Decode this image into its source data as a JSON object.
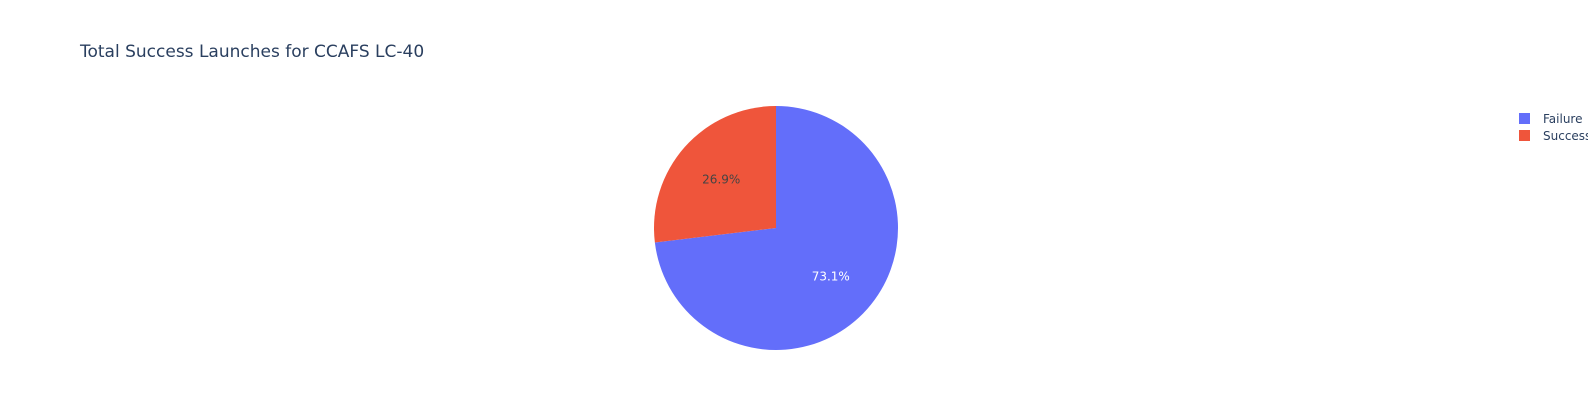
{
  "chart_data": {
    "type": "pie",
    "title": "Total Success Launches for CCAFS LC-40",
    "categories": [
      "Failure",
      "Success"
    ],
    "values": [
      73.1,
      26.9
    ],
    "labels": [
      "73.1%",
      "26.9%"
    ],
    "colors": [
      "#636efa",
      "#ef553b"
    ],
    "label_colors": [
      "#ffffff",
      "#444444"
    ],
    "legend": {
      "position": "top-right",
      "entries": [
        "Failure",
        "Success"
      ]
    }
  }
}
